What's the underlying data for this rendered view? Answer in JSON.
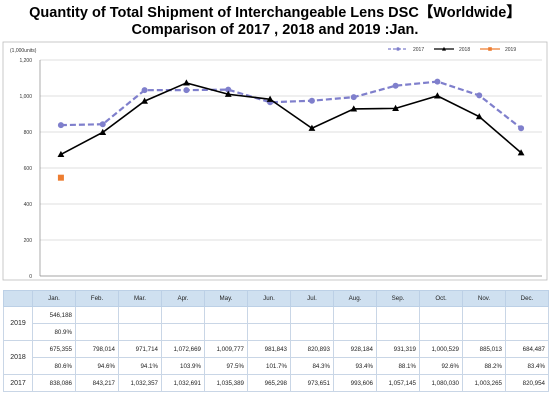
{
  "title_line1": "Quantity of Total Shipment of Interchangeable Lens DSC【Worldwide】",
  "title_line2": "Comparison of 2017 , 2018 and 2019 :Jan.",
  "chart_data": {
    "type": "line",
    "title": "Quantity of Total Shipment of Interchangeable Lens DSC【Worldwide】 Comparison of 2017 , 2018 and 2019 :Jan.",
    "yunit": "(1,000units)",
    "ylim": [
      0,
      1200
    ],
    "yticks": [
      0,
      200,
      400,
      600,
      800,
      1000,
      1200
    ],
    "ytick_labels": [
      "0",
      "200",
      "400",
      "600",
      "800",
      "1,000",
      "1,200"
    ],
    "categories": [
      "Jan.",
      "Feb.",
      "Mar.",
      "Apr.",
      "May.",
      "Jun.",
      "Jul.",
      "Aug.",
      "Sep.",
      "Oct.",
      "Nov.",
      "Dec."
    ],
    "grid": true,
    "legend_position": "top-right",
    "series": [
      {
        "name": "2017",
        "color": "#7f7fcc",
        "style": "dashed",
        "marker": "circle",
        "values": [
          838.086,
          843.217,
          1032.357,
          1032.691,
          1035.389,
          965.298,
          973.651,
          993.606,
          1057.145,
          1080.03,
          1003.265,
          820.954
        ]
      },
      {
        "name": "2018",
        "color": "#000000",
        "style": "solid",
        "marker": "triangle",
        "values": [
          675.355,
          798.014,
          971.714,
          1072.669,
          1009.777,
          981.843,
          820.893,
          928.184,
          931.319,
          1000.529,
          885.013,
          684.487
        ]
      },
      {
        "name": "2019",
        "color": "#ed7d31",
        "style": "solid",
        "marker": "square",
        "values": [
          546.188,
          null,
          null,
          null,
          null,
          null,
          null,
          null,
          null,
          null,
          null,
          null
        ]
      }
    ]
  },
  "table": {
    "months": [
      "Jan.",
      "Feb.",
      "Mar.",
      "Apr.",
      "May.",
      "Jun.",
      "Jul.",
      "Aug.",
      "Sep.",
      "Oct.",
      "Nov.",
      "Dec."
    ],
    "rows": [
      {
        "year": "2019",
        "units": [
          "546,188",
          "",
          "",
          "",
          "",
          "",
          "",
          "",
          "",
          "",
          "",
          ""
        ],
        "ratio": [
          "80.9%",
          "",
          "",
          "",
          "",
          "",
          "",
          "",
          "",
          "",
          "",
          ""
        ]
      },
      {
        "year": "2018",
        "units": [
          "675,355",
          "798,014",
          "971,714",
          "1,072,669",
          "1,009,777",
          "981,843",
          "820,893",
          "928,184",
          "931,319",
          "1,000,529",
          "885,013",
          "684,487"
        ],
        "ratio": [
          "80.6%",
          "94.6%",
          "94.1%",
          "103.9%",
          "97.5%",
          "101.7%",
          "84.3%",
          "93.4%",
          "88.1%",
          "92.6%",
          "88.2%",
          "83.4%"
        ]
      },
      {
        "year": "2017",
        "units": [
          "838,086",
          "843,217",
          "1,032,357",
          "1,032,691",
          "1,035,389",
          "965,298",
          "973,651",
          "993,606",
          "1,057,145",
          "1,080,030",
          "1,003,265",
          "820,954"
        ]
      }
    ]
  }
}
